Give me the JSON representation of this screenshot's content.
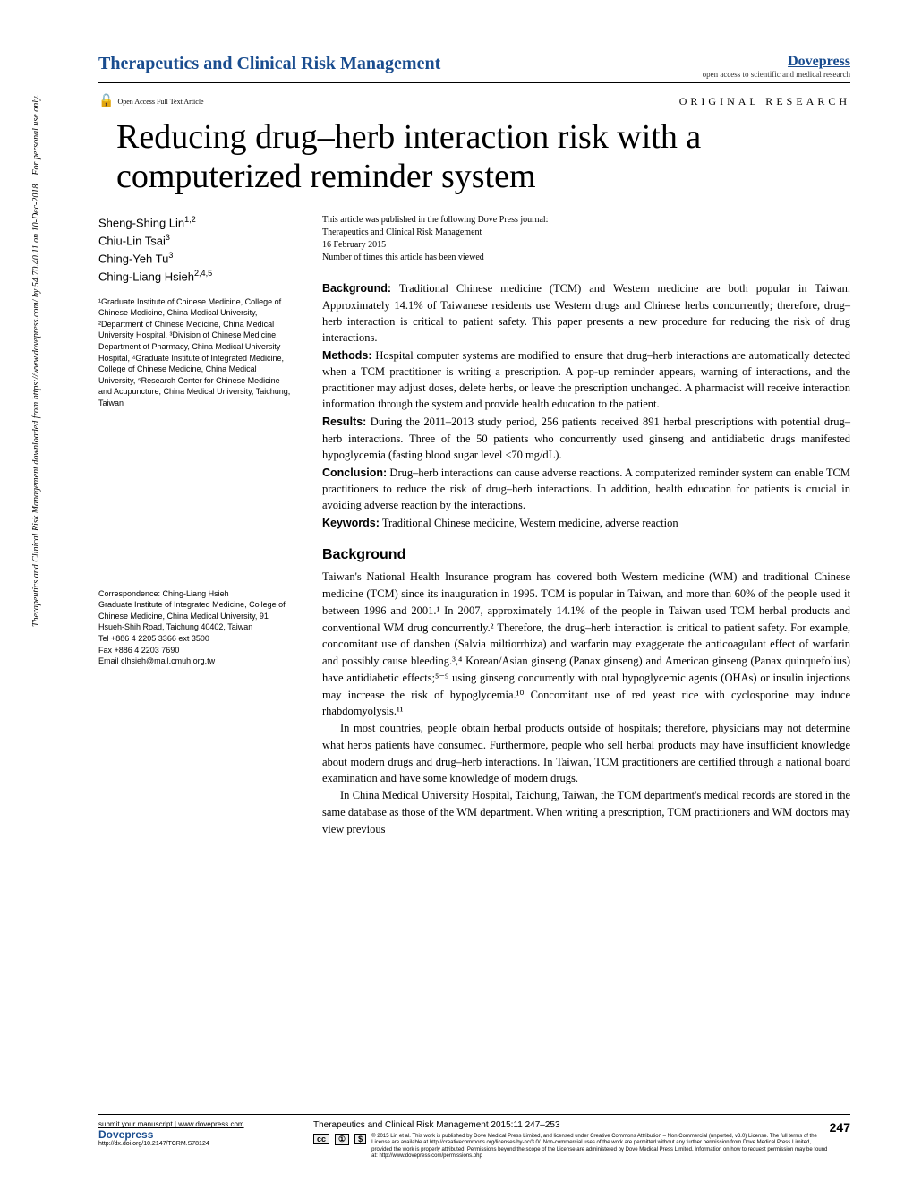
{
  "sidebar_text": "Therapeutics and Clinical Risk Management downloaded from https://www.dovepress.com/ by 54.70.40.11 on 10-Dec-2018 For personal use only.",
  "header": {
    "journal": "Therapeutics and Clinical Risk Management",
    "publisher": "Dovepress",
    "publisher_sub": "open access to scientific and medical research"
  },
  "oa_badge": "Open Access Full Text Article",
  "article_type": "ORIGINAL RESEARCH",
  "title": "Reducing drug–herb interaction risk with a computerized reminder system",
  "pub_info": {
    "line1": "This article was published in the following Dove Press journal:",
    "line2": "Therapeutics and Clinical Risk Management",
    "line3": "16 February 2015",
    "line4": "Number of times this article has been viewed"
  },
  "authors": [
    "Sheng-Shing Lin",
    "Chiu-Lin Tsai",
    "Ching-Yeh Tu",
    "Ching-Liang Hsieh"
  ],
  "author_sups": [
    "1,2",
    "3",
    "3",
    "2,4,5"
  ],
  "affiliations": "¹Graduate Institute of Chinese Medicine, College of Chinese Medicine, China Medical University, ²Department of Chinese Medicine, China Medical University Hospital, ³Division of Chinese Medicine, Department of Pharmacy, China Medical University Hospital, ⁴Graduate Institute of Integrated Medicine, College of Chinese Medicine, China Medical University, ⁵Research Center for Chinese Medicine and Acupuncture, China Medical University, Taichung, Taiwan",
  "correspondence": "Correspondence: Ching-Liang Hsieh\nGraduate Institute of Integrated Medicine, College of Chinese Medicine, China Medical University, 91 Hsueh-Shih Road, Taichung 40402, Taiwan\nTel +886 4 2205 3366 ext 3500\nFax +886 4 2203 7690\nEmail clhsieh@mail.cmuh.org.tw",
  "abstract": {
    "background": "Traditional Chinese medicine (TCM) and Western medicine are both popular in Taiwan. Approximately 14.1% of Taiwanese residents use Western drugs and Chinese herbs concurrently; therefore, drug–herb interaction is critical to patient safety. This paper presents a new procedure for reducing the risk of drug interactions.",
    "methods": "Hospital computer systems are modified to ensure that drug–herb interactions are automatically detected when a TCM practitioner is writing a prescription. A pop-up reminder appears, warning of interactions, and the practitioner may adjust doses, delete herbs, or leave the prescription unchanged. A pharmacist will receive interaction information through the system and provide health education to the patient.",
    "results": "During the 2011–2013 study period, 256 patients received 891 herbal prescriptions with potential drug–herb interactions. Three of the 50 patients who concurrently used ginseng and antidiabetic drugs manifested hypoglycemia (fasting blood sugar level ≤70 mg/dL).",
    "conclusion": "Drug–herb interactions can cause adverse reactions. A computerized reminder system can enable TCM practitioners to reduce the risk of drug–herb interactions. In addition, health education for patients is crucial in avoiding adverse reaction by the interactions.",
    "keywords": "Traditional Chinese medicine, Western medicine, adverse reaction"
  },
  "background_heading": "Background",
  "body_p1": "Taiwan's National Health Insurance program has covered both Western medicine (WM) and traditional Chinese medicine (TCM) since its inauguration in 1995. TCM is popular in Taiwan, and more than 60% of the people used it between 1996 and 2001.¹ In 2007, approximately 14.1% of the people in Taiwan used TCM herbal products and conventional WM drug concurrently.² Therefore, the drug–herb interaction is critical to patient safety. For example, concomitant use of danshen (Salvia miltiorrhiza) and warfarin may exaggerate the anticoagulant effect of warfarin and possibly cause bleeding.³,⁴ Korean/Asian ginseng (Panax ginseng) and American ginseng (Panax quinquefolius) have antidiabetic effects;⁵⁻⁹ using ginseng concurrently with oral hypoglycemic agents (OHAs) or insulin injections may increase the risk of hypoglycemia.¹⁰ Concomitant use of red yeast rice with cyclosporine may induce rhabdomyolysis.¹¹",
  "body_p2": "In most countries, people obtain herbal products outside of hospitals; therefore, physicians may not determine what herbs patients have consumed. Furthermore, people who sell herbal products may have insufficient knowledge about modern drugs and drug–herb interactions. In Taiwan, TCM practitioners are certified through a national board examination and have some knowledge of modern drugs.",
  "body_p3": "In China Medical University Hospital, Taichung, Taiwan, the TCM department's medical records are stored in the same database as those of the WM department. When writing a prescription, TCM practitioners and WM doctors may view previous",
  "footer": {
    "submit": "submit your manuscript | www.dovepress.com",
    "dove": "Dovepress",
    "doi": "http://dx.doi.org/10.2147/TCRM.S78124",
    "citation": "Therapeutics and Clinical Risk Management 2015:11 247–253",
    "page": "247",
    "license": "© 2015 Lin et al. This work is published by Dove Medical Press Limited, and licensed under Creative Commons Attribution – Non Commercial (unported, v3.0) License. The full terms of the License are available at http://creativecommons.org/licenses/by-nc/3.0/. Non-commercial uses of the work are permitted without any further permission from Dove Medical Press Limited, provided the work is properly attributed. Permissions beyond the scope of the License are administered by Dove Medical Press Limited. Information on how to request permission may be found at: http://www.dovepress.com/permissions.php"
  }
}
